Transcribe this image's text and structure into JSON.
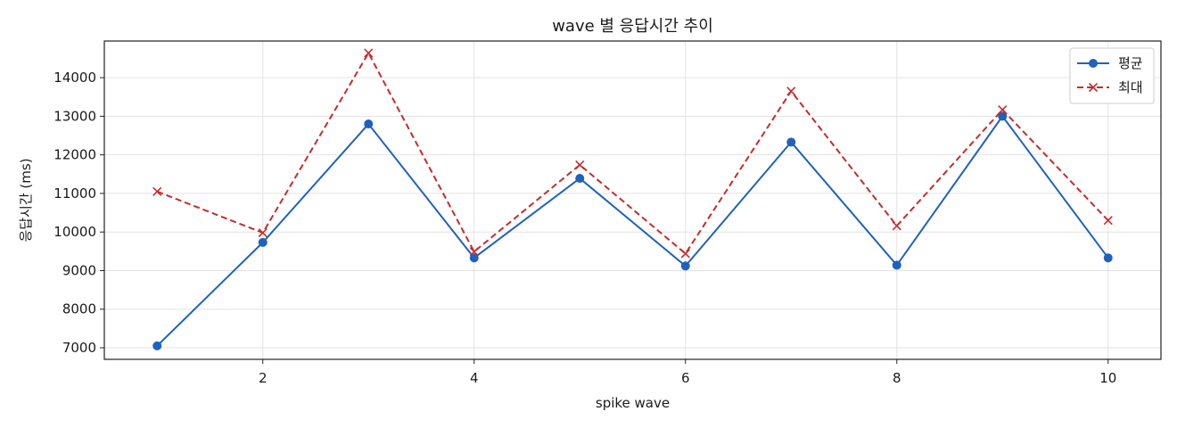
{
  "chart_data": {
    "type": "line",
    "title": "wave 별 응답시간 추이",
    "xlabel": "spike wave",
    "ylabel": "응답시간 (ms)",
    "x": [
      1,
      2,
      3,
      4,
      5,
      6,
      7,
      8,
      9,
      10
    ],
    "xlim": [
      0.5,
      10.5
    ],
    "ylim": [
      6700,
      14950
    ],
    "x_ticks": [
      2,
      4,
      6,
      8,
      10
    ],
    "y_ticks": [
      7000,
      8000,
      9000,
      10000,
      11000,
      12000,
      13000,
      14000
    ],
    "grid": true,
    "legend_position": "top-right",
    "series": [
      {
        "name": "평균",
        "color": "#1f62bd",
        "line_style": "solid",
        "marker": "circle",
        "values": [
          7050,
          9730,
          12800,
          9330,
          11390,
          9120,
          12330,
          9140,
          13000,
          9330
        ]
      },
      {
        "name": "최대",
        "color": "#c62c2c",
        "line_style": "dashed",
        "marker": "x",
        "values": [
          11050,
          9980,
          14640,
          9490,
          11740,
          9440,
          13650,
          10160,
          13170,
          10300
        ]
      }
    ]
  }
}
